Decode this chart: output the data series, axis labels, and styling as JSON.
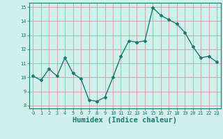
{
  "xlabel": "Humidex (Indice chaleur)",
  "ylabel": "",
  "x": [
    0,
    1,
    2,
    3,
    4,
    5,
    6,
    7,
    8,
    9,
    10,
    11,
    12,
    13,
    14,
    15,
    16,
    17,
    18,
    19,
    20,
    21,
    22,
    23
  ],
  "y": [
    10.1,
    9.8,
    10.6,
    10.1,
    11.4,
    10.3,
    9.9,
    8.4,
    8.3,
    8.6,
    10.0,
    11.5,
    12.6,
    12.5,
    12.6,
    14.95,
    14.4,
    14.1,
    13.8,
    13.2,
    12.2,
    11.4,
    11.5,
    11.1
  ],
  "line_color": "#1a7a6e",
  "marker": "D",
  "marker_size": 2.0,
  "bg_color": "#cff0eb",
  "grid_color": "#c8a0a0",
  "xlim": [
    -0.5,
    23.5
  ],
  "ylim": [
    7.8,
    15.3
  ],
  "yticks": [
    8,
    9,
    10,
    11,
    12,
    13,
    14,
    15
  ],
  "xticks": [
    0,
    1,
    2,
    3,
    4,
    5,
    6,
    7,
    8,
    9,
    10,
    11,
    12,
    13,
    14,
    15,
    16,
    17,
    18,
    19,
    20,
    21,
    22,
    23
  ],
  "tick_fontsize": 5.0,
  "xlabel_fontsize": 7.5,
  "spine_color": "#1a7a6e",
  "linewidth": 1.0
}
